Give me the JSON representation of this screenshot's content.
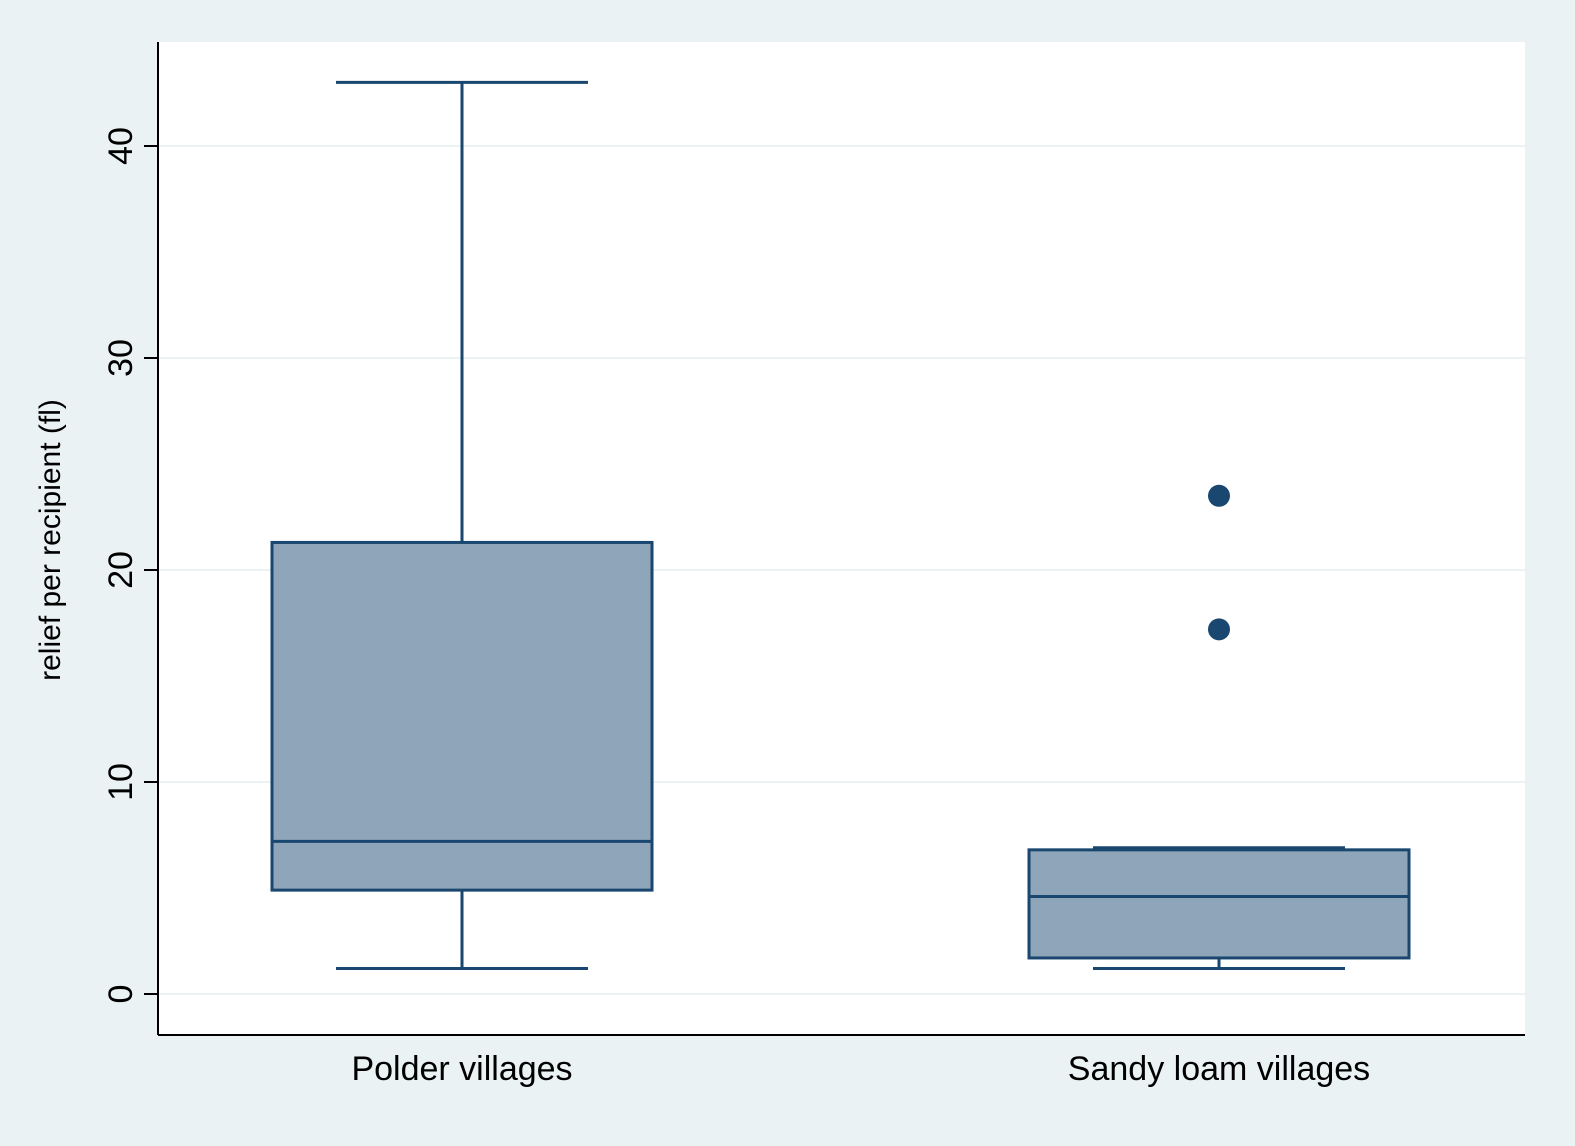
{
  "chart_data": {
    "type": "box",
    "title": "",
    "xlabel": "",
    "ylabel": "relief per recipient (fl)",
    "ylim": [
      -1.8,
      45
    ],
    "yticks": [
      0,
      10,
      20,
      30,
      40
    ],
    "grid": true,
    "categories": [
      "Polder villages",
      "Sandy loam villages"
    ],
    "boxes": [
      {
        "category": "Polder villages",
        "whisker_low": 1.2,
        "q1": 4.9,
        "median": 7.2,
        "q3": 21.3,
        "whisker_high": 43.0,
        "outliers": []
      },
      {
        "category": "Sandy loam villages",
        "whisker_low": 1.2,
        "q1": 1.7,
        "median": 4.6,
        "q3": 6.8,
        "whisker_high": 6.9,
        "outliers": [
          17.2,
          23.5
        ]
      }
    ],
    "colors": {
      "outer_background": "#eaf2f3",
      "plot_background": "#ffffff",
      "box_fill": "#8fa6ba",
      "box_stroke": "#1a476f",
      "gridline": "#eaf2f3",
      "axis": "#000000"
    }
  }
}
